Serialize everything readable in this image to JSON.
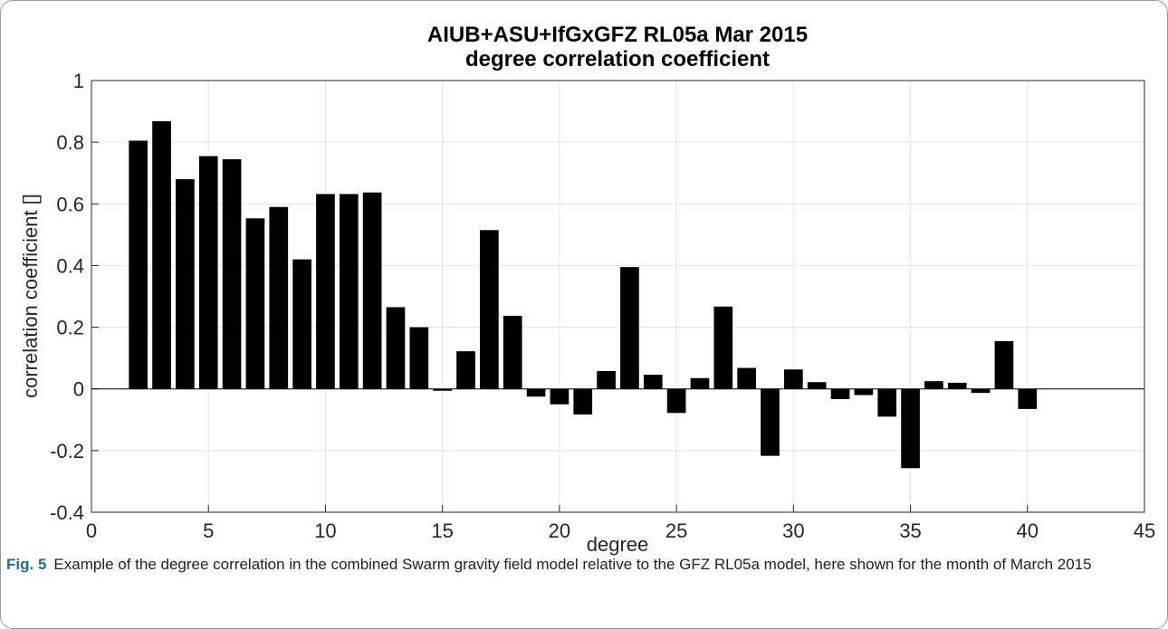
{
  "chart_data": {
    "type": "bar",
    "title": "AIUB+ASU+IfGxGFZ RL05a Mar 2015",
    "subtitle": "degree correlation coefficient",
    "x_label": "degree",
    "y_label": "correlation coefficient []",
    "x": [
      2,
      3,
      4,
      5,
      6,
      7,
      8,
      9,
      10,
      11,
      12,
      13,
      14,
      15,
      16,
      17,
      18,
      19,
      20,
      21,
      22,
      23,
      24,
      25,
      26,
      27,
      28,
      29,
      30,
      31,
      32,
      33,
      34,
      35,
      36,
      37,
      38,
      39,
      40
    ],
    "values": [
      0.805,
      0.868,
      0.68,
      0.755,
      0.745,
      0.553,
      0.59,
      0.42,
      0.632,
      0.632,
      0.637,
      0.265,
      0.2,
      -0.006,
      0.122,
      0.515,
      0.237,
      -0.025,
      -0.05,
      -0.083,
      0.058,
      0.395,
      0.046,
      -0.078,
      0.035,
      0.267,
      0.068,
      -0.217,
      0.063,
      0.022,
      -0.033,
      -0.02,
      -0.09,
      -0.257,
      0.025,
      0.02,
      -0.013,
      0.155,
      -0.065
    ],
    "color": "#000000",
    "xlim": [
      0,
      45
    ],
    "xticks": [
      0,
      5,
      10,
      15,
      20,
      25,
      30,
      35,
      40,
      45
    ],
    "ylim": [
      -0.4,
      1
    ],
    "yticks": [
      -0.4,
      -0.2,
      0,
      0.2,
      0.4,
      0.6,
      0.8,
      1
    ],
    "grid": true
  },
  "caption": {
    "label": "Fig. 5",
    "text": "Example of the degree correlation in the combined Swarm gravity field model relative to the GFZ RL05a model, here shown for the month of March 2015"
  }
}
